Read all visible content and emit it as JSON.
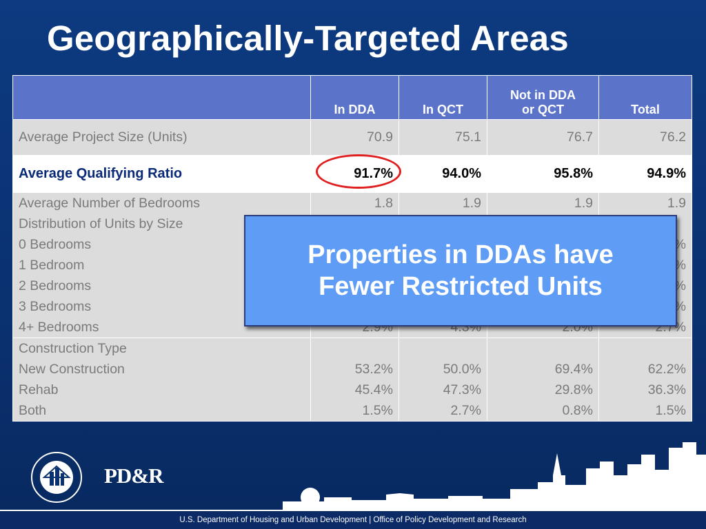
{
  "title": "Geographically-Targeted Areas",
  "table": {
    "headers": [
      "",
      "In DDA",
      "In QCT",
      "Not in DDA\nor  QCT",
      "Total"
    ],
    "header_not_dda_line1": "Not in DDA",
    "header_not_dda_line2": "or  QCT",
    "project_size": {
      "label": "Average Project Size (Units)",
      "values": [
        "70.9",
        "75.1",
        "76.7",
        "76.2"
      ]
    },
    "qualifying_ratio": {
      "label": "Average Qualifying Ratio",
      "values": [
        "91.7%",
        "94.0%",
        "95.8%",
        "94.9%"
      ]
    },
    "bedrooms": {
      "labels": [
        "Average Number of Bedrooms",
        "Distribution of Units by Size",
        "0 Bedrooms",
        "1 Bedroom",
        "2 Bedrooms",
        "3 Bedrooms",
        "4+ Bedrooms"
      ],
      "columns": [
        [
          "1.8",
          "",
          "",
          "",
          "",
          "",
          "2.9%"
        ],
        [
          "1.9",
          "",
          "",
          "",
          "",
          "",
          "4.3%"
        ],
        [
          "1.9",
          "",
          "",
          "",
          "",
          "",
          "2.0%"
        ],
        [
          "1.9",
          "",
          "%",
          "%",
          "%",
          "%",
          "2.7%"
        ]
      ]
    },
    "construction": {
      "labels": [
        "Construction Type",
        "New Construction",
        "Rehab",
        "Both"
      ],
      "columns": [
        [
          "",
          "53.2%",
          "45.4%",
          "1.5%"
        ],
        [
          "",
          "50.0%",
          "47.3%",
          "2.7%"
        ],
        [
          "",
          "69.4%",
          "29.8%",
          "0.8%"
        ],
        [
          "",
          "62.2%",
          "36.3%",
          "1.5%"
        ]
      ]
    }
  },
  "callout": {
    "line1": "Properties in DDAs have",
    "line2": "Fewer Restricted Units"
  },
  "footer": {
    "text": "U.S. Department of Housing and Urban Development  |  Office of Policy Development and Research",
    "logo_text": "PD&R",
    "seal_text": "U.S. DEPARTMENT OF HOUSING AND URBAN DEVELOPMENT"
  },
  "colors": {
    "background": "#0a3170",
    "header": "#5b73c8",
    "callout": "#5f9cf5",
    "circle": "#e02020"
  }
}
